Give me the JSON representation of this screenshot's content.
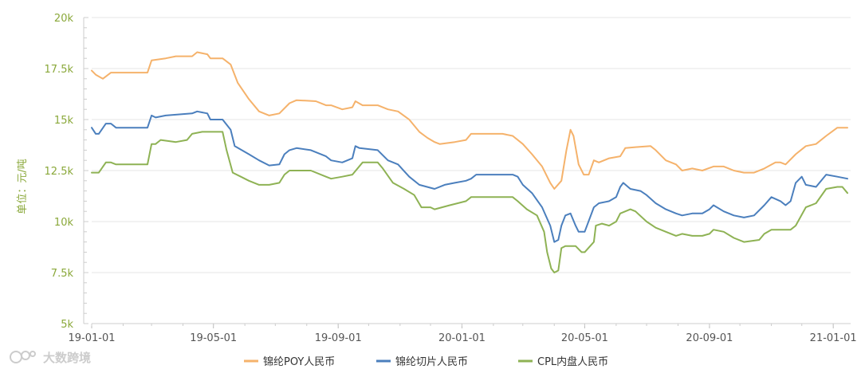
{
  "watermark": "大数跨境",
  "colors": {
    "poy": "#f5b26b",
    "chip": "#4b7fbd",
    "cpl": "#8eb254",
    "axis_text": "#8aa83a",
    "grid": "#e6e6e6"
  },
  "chart_data": {
    "type": "line",
    "title": "",
    "xlabel": "",
    "ylabel": "单位：元/吨",
    "ylim": [
      5000,
      20000
    ],
    "x_range": [
      "2019-01-01",
      "2021-01-15"
    ],
    "y_ticks": [
      {
        "value": 5000,
        "label": "5k"
      },
      {
        "value": 7500,
        "label": "7.5k"
      },
      {
        "value": 10000,
        "label": "10k"
      },
      {
        "value": 12500,
        "label": "12.5k"
      },
      {
        "value": 15000,
        "label": "15k"
      },
      {
        "value": 17500,
        "label": "17.5k"
      },
      {
        "value": 20000,
        "label": "20k"
      }
    ],
    "x_ticks": [
      "19-01-01",
      "19-05-01",
      "19-09-01",
      "20-01-01",
      "20-05-01",
      "20-09-01",
      "21-01-01"
    ],
    "x_tick_dates": [
      "2019-01-01",
      "2019-05-01",
      "2019-09-01",
      "2020-01-01",
      "2020-05-01",
      "2020-09-01",
      "2021-01-01"
    ],
    "grid": true,
    "legend_position": "bottom",
    "series": [
      {
        "name": "锦纶POY人民币",
        "color": "#f5b26b",
        "points": [
          [
            "2019-01-01",
            17400
          ],
          [
            "2019-01-05",
            17200
          ],
          [
            "2019-01-12",
            17000
          ],
          [
            "2019-01-20",
            17300
          ],
          [
            "2019-02-15",
            17300
          ],
          [
            "2019-02-25",
            17300
          ],
          [
            "2019-03-01",
            17900
          ],
          [
            "2019-03-15",
            18000
          ],
          [
            "2019-03-25",
            18100
          ],
          [
            "2019-04-10",
            18100
          ],
          [
            "2019-04-15",
            18300
          ],
          [
            "2019-04-25",
            18200
          ],
          [
            "2019-04-28",
            18000
          ],
          [
            "2019-05-10",
            18000
          ],
          [
            "2019-05-18",
            17700
          ],
          [
            "2019-05-25",
            16800
          ],
          [
            "2019-06-05",
            16000
          ],
          [
            "2019-06-15",
            15400
          ],
          [
            "2019-06-25",
            15200
          ],
          [
            "2019-07-05",
            15300
          ],
          [
            "2019-07-15",
            15800
          ],
          [
            "2019-07-22",
            15950
          ],
          [
            "2019-08-10",
            15900
          ],
          [
            "2019-08-20",
            15700
          ],
          [
            "2019-08-25",
            15700
          ],
          [
            "2019-09-05",
            15500
          ],
          [
            "2019-09-15",
            15600
          ],
          [
            "2019-09-18",
            15900
          ],
          [
            "2019-09-25",
            15700
          ],
          [
            "2019-10-10",
            15700
          ],
          [
            "2019-10-20",
            15500
          ],
          [
            "2019-10-30",
            15400
          ],
          [
            "2019-11-10",
            15000
          ],
          [
            "2019-11-20",
            14400
          ],
          [
            "2019-11-28",
            14100
          ],
          [
            "2019-12-05",
            13900
          ],
          [
            "2019-12-10",
            13800
          ],
          [
            "2019-12-25",
            13900
          ],
          [
            "2020-01-05",
            14000
          ],
          [
            "2020-01-10",
            14300
          ],
          [
            "2020-02-10",
            14300
          ],
          [
            "2020-02-20",
            14200
          ],
          [
            "2020-03-01",
            13800
          ],
          [
            "2020-03-10",
            13300
          ],
          [
            "2020-03-20",
            12700
          ],
          [
            "2020-03-28",
            11900
          ],
          [
            "2020-04-01",
            11600
          ],
          [
            "2020-04-08",
            12000
          ],
          [
            "2020-04-13",
            13500
          ],
          [
            "2020-04-17",
            14500
          ],
          [
            "2020-04-20",
            14200
          ],
          [
            "2020-04-25",
            12800
          ],
          [
            "2020-04-30",
            12300
          ],
          [
            "2020-05-05",
            12300
          ],
          [
            "2020-05-10",
            13000
          ],
          [
            "2020-05-15",
            12900
          ],
          [
            "2020-05-25",
            13100
          ],
          [
            "2020-06-05",
            13200
          ],
          [
            "2020-06-10",
            13600
          ],
          [
            "2020-06-20",
            13650
          ],
          [
            "2020-07-05",
            13700
          ],
          [
            "2020-07-10",
            13500
          ],
          [
            "2020-07-20",
            13000
          ],
          [
            "2020-07-30",
            12800
          ],
          [
            "2020-08-05",
            12500
          ],
          [
            "2020-08-15",
            12600
          ],
          [
            "2020-08-25",
            12500
          ],
          [
            "2020-09-05",
            12700
          ],
          [
            "2020-09-15",
            12700
          ],
          [
            "2020-09-25",
            12500
          ],
          [
            "2020-10-05",
            12400
          ],
          [
            "2020-10-15",
            12400
          ],
          [
            "2020-10-25",
            12600
          ],
          [
            "2020-11-05",
            12900
          ],
          [
            "2020-11-10",
            12900
          ],
          [
            "2020-11-15",
            12800
          ],
          [
            "2020-11-25",
            13300
          ],
          [
            "2020-12-05",
            13700
          ],
          [
            "2020-12-15",
            13800
          ],
          [
            "2020-12-25",
            14200
          ],
          [
            "2021-01-05",
            14600
          ],
          [
            "2021-01-15",
            14600
          ]
        ]
      },
      {
        "name": "锦纶切片人民币",
        "color": "#4b7fbd",
        "points": [
          [
            "2019-01-01",
            14600
          ],
          [
            "2019-01-05",
            14300
          ],
          [
            "2019-01-08",
            14300
          ],
          [
            "2019-01-15",
            14800
          ],
          [
            "2019-01-20",
            14800
          ],
          [
            "2019-01-25",
            14600
          ],
          [
            "2019-02-25",
            14600
          ],
          [
            "2019-03-01",
            15200
          ],
          [
            "2019-03-05",
            15100
          ],
          [
            "2019-03-15",
            15200
          ],
          [
            "2019-04-10",
            15300
          ],
          [
            "2019-04-15",
            15400
          ],
          [
            "2019-04-25",
            15300
          ],
          [
            "2019-04-28",
            15000
          ],
          [
            "2019-05-10",
            15000
          ],
          [
            "2019-05-18",
            14500
          ],
          [
            "2019-05-22",
            13700
          ],
          [
            "2019-06-05",
            13300
          ],
          [
            "2019-06-15",
            13000
          ],
          [
            "2019-06-25",
            12750
          ],
          [
            "2019-07-05",
            12800
          ],
          [
            "2019-07-10",
            13300
          ],
          [
            "2019-07-15",
            13500
          ],
          [
            "2019-07-22",
            13600
          ],
          [
            "2019-08-05",
            13500
          ],
          [
            "2019-08-20",
            13200
          ],
          [
            "2019-08-25",
            13000
          ],
          [
            "2019-09-05",
            12900
          ],
          [
            "2019-09-10",
            13000
          ],
          [
            "2019-09-15",
            13100
          ],
          [
            "2019-09-18",
            13700
          ],
          [
            "2019-09-22",
            13600
          ],
          [
            "2019-10-10",
            13500
          ],
          [
            "2019-10-20",
            13000
          ],
          [
            "2019-10-30",
            12800
          ],
          [
            "2019-11-10",
            12200
          ],
          [
            "2019-11-20",
            11800
          ],
          [
            "2019-12-05",
            11600
          ],
          [
            "2019-12-15",
            11800
          ],
          [
            "2019-12-25",
            11900
          ],
          [
            "2020-01-05",
            12000
          ],
          [
            "2020-01-10",
            12100
          ],
          [
            "2020-01-15",
            12300
          ],
          [
            "2020-02-20",
            12300
          ],
          [
            "2020-02-25",
            12200
          ],
          [
            "2020-03-01",
            11800
          ],
          [
            "2020-03-10",
            11400
          ],
          [
            "2020-03-20",
            10700
          ],
          [
            "2020-03-28",
            9800
          ],
          [
            "2020-04-01",
            9000
          ],
          [
            "2020-04-05",
            9100
          ],
          [
            "2020-04-08",
            9800
          ],
          [
            "2020-04-12",
            10300
          ],
          [
            "2020-04-17",
            10400
          ],
          [
            "2020-04-22",
            9800
          ],
          [
            "2020-04-25",
            9500
          ],
          [
            "2020-05-01",
            9500
          ],
          [
            "2020-05-10",
            10700
          ],
          [
            "2020-05-15",
            10900
          ],
          [
            "2020-05-25",
            11000
          ],
          [
            "2020-06-01",
            11200
          ],
          [
            "2020-06-05",
            11700
          ],
          [
            "2020-06-08",
            11900
          ],
          [
            "2020-06-15",
            11600
          ],
          [
            "2020-06-25",
            11500
          ],
          [
            "2020-07-01",
            11300
          ],
          [
            "2020-07-10",
            10900
          ],
          [
            "2020-07-20",
            10600
          ],
          [
            "2020-07-30",
            10400
          ],
          [
            "2020-08-05",
            10300
          ],
          [
            "2020-08-15",
            10400
          ],
          [
            "2020-08-25",
            10400
          ],
          [
            "2020-09-01",
            10600
          ],
          [
            "2020-09-05",
            10800
          ],
          [
            "2020-09-15",
            10500
          ],
          [
            "2020-09-25",
            10300
          ],
          [
            "2020-10-05",
            10200
          ],
          [
            "2020-10-15",
            10300
          ],
          [
            "2020-10-25",
            10800
          ],
          [
            "2020-11-01",
            11200
          ],
          [
            "2020-11-10",
            11000
          ],
          [
            "2020-11-15",
            10800
          ],
          [
            "2020-11-20",
            11000
          ],
          [
            "2020-11-25",
            11900
          ],
          [
            "2020-12-01",
            12200
          ],
          [
            "2020-12-05",
            11800
          ],
          [
            "2020-12-15",
            11700
          ],
          [
            "2020-12-25",
            12300
          ],
          [
            "2021-01-05",
            12200
          ],
          [
            "2021-01-15",
            12100
          ]
        ]
      },
      {
        "name": "CPL内盘人民币",
        "color": "#8eb254",
        "points": [
          [
            "2019-01-01",
            12400
          ],
          [
            "2019-01-08",
            12400
          ],
          [
            "2019-01-15",
            12900
          ],
          [
            "2019-01-20",
            12900
          ],
          [
            "2019-01-25",
            12800
          ],
          [
            "2019-02-25",
            12800
          ],
          [
            "2019-03-01",
            13800
          ],
          [
            "2019-03-05",
            13800
          ],
          [
            "2019-03-10",
            14000
          ],
          [
            "2019-03-25",
            13900
          ],
          [
            "2019-04-05",
            14000
          ],
          [
            "2019-04-10",
            14300
          ],
          [
            "2019-04-20",
            14400
          ],
          [
            "2019-05-10",
            14400
          ],
          [
            "2019-05-14",
            13500
          ],
          [
            "2019-05-20",
            12400
          ],
          [
            "2019-05-28",
            12200
          ],
          [
            "2019-06-05",
            12000
          ],
          [
            "2019-06-15",
            11800
          ],
          [
            "2019-06-25",
            11800
          ],
          [
            "2019-07-05",
            11900
          ],
          [
            "2019-07-10",
            12300
          ],
          [
            "2019-07-15",
            12500
          ],
          [
            "2019-07-22",
            12500
          ],
          [
            "2019-08-05",
            12500
          ],
          [
            "2019-08-20",
            12200
          ],
          [
            "2019-08-25",
            12100
          ],
          [
            "2019-09-05",
            12200
          ],
          [
            "2019-09-15",
            12300
          ],
          [
            "2019-09-25",
            12900
          ],
          [
            "2019-10-10",
            12900
          ],
          [
            "2019-10-15",
            12600
          ],
          [
            "2019-10-25",
            11900
          ],
          [
            "2019-11-05",
            11600
          ],
          [
            "2019-11-15",
            11300
          ],
          [
            "2019-11-22",
            10700
          ],
          [
            "2019-12-01",
            10700
          ],
          [
            "2019-12-05",
            10600
          ],
          [
            "2019-12-20",
            10800
          ],
          [
            "2020-01-05",
            11000
          ],
          [
            "2020-01-10",
            11200
          ],
          [
            "2020-02-20",
            11200
          ],
          [
            "2020-02-25",
            11000
          ],
          [
            "2020-03-05",
            10600
          ],
          [
            "2020-03-15",
            10300
          ],
          [
            "2020-03-22",
            9500
          ],
          [
            "2020-03-25",
            8500
          ],
          [
            "2020-03-29",
            7700
          ],
          [
            "2020-04-01",
            7500
          ],
          [
            "2020-04-05",
            7600
          ],
          [
            "2020-04-08",
            8700
          ],
          [
            "2020-04-12",
            8800
          ],
          [
            "2020-04-22",
            8800
          ],
          [
            "2020-04-28",
            8500
          ],
          [
            "2020-05-01",
            8500
          ],
          [
            "2020-05-10",
            9000
          ],
          [
            "2020-05-12",
            9800
          ],
          [
            "2020-05-18",
            9900
          ],
          [
            "2020-05-25",
            9800
          ],
          [
            "2020-06-01",
            10000
          ],
          [
            "2020-06-05",
            10400
          ],
          [
            "2020-06-15",
            10600
          ],
          [
            "2020-06-20",
            10500
          ],
          [
            "2020-07-01",
            10000
          ],
          [
            "2020-07-10",
            9700
          ],
          [
            "2020-07-20",
            9500
          ],
          [
            "2020-07-30",
            9300
          ],
          [
            "2020-08-05",
            9400
          ],
          [
            "2020-08-15",
            9300
          ],
          [
            "2020-08-25",
            9300
          ],
          [
            "2020-09-01",
            9400
          ],
          [
            "2020-09-05",
            9600
          ],
          [
            "2020-09-15",
            9500
          ],
          [
            "2020-09-25",
            9200
          ],
          [
            "2020-10-05",
            9000
          ],
          [
            "2020-10-20",
            9100
          ],
          [
            "2020-10-25",
            9400
          ],
          [
            "2020-11-01",
            9600
          ],
          [
            "2020-11-20",
            9600
          ],
          [
            "2020-11-25",
            9800
          ],
          [
            "2020-12-05",
            10700
          ],
          [
            "2020-12-15",
            10900
          ],
          [
            "2020-12-25",
            11600
          ],
          [
            "2021-01-05",
            11700
          ],
          [
            "2021-01-10",
            11700
          ],
          [
            "2021-01-15",
            11400
          ]
        ]
      }
    ]
  }
}
